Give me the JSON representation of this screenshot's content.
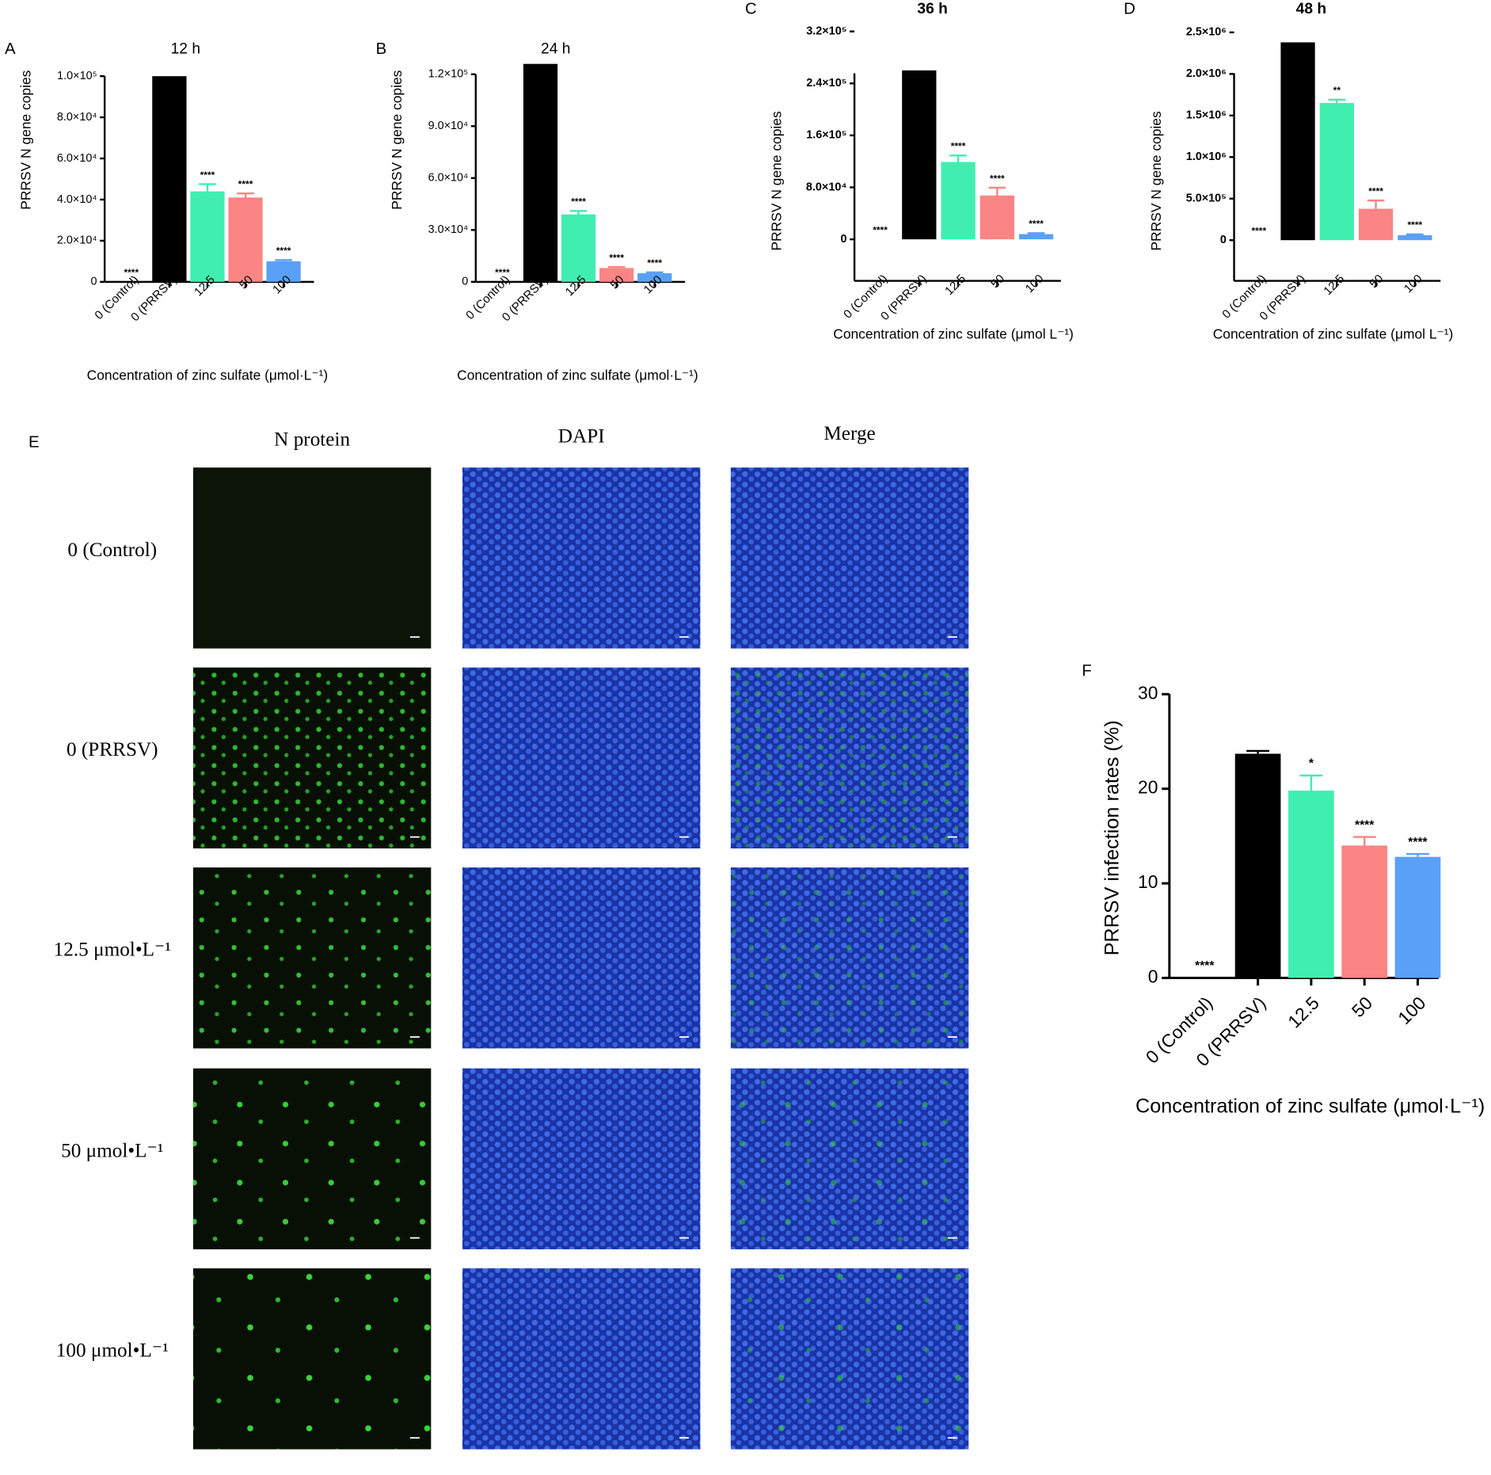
{
  "chart_data": [
    {
      "type": "bar",
      "panel": "A",
      "title": "12 h",
      "ylabel": "PRRSV N gene copies",
      "xlabel": "Concentration of zinc sulfate (μmol·L⁻¹)",
      "categories": [
        "0 (Control)",
        "0 (PRRSV)",
        "12.5",
        "50",
        "100"
      ],
      "values": [
        0,
        100000,
        44000,
        41000,
        10000
      ],
      "errors": [
        0,
        0,
        3500,
        2000,
        600
      ],
      "annotations": [
        "****",
        null,
        "****",
        "****",
        "****"
      ],
      "colors": [
        "#000000",
        "#000000",
        "#40eeb0",
        "#fb8484",
        "#5aa0f7"
      ],
      "ylim": [
        0,
        100000
      ],
      "yticks": [
        0,
        {
          "value": 20000,
          "label": "2.0×10⁴"
        },
        {
          "value": 40000,
          "label": "4.0×10⁴"
        },
        {
          "value": 60000,
          "label": "6.0×10⁴"
        },
        {
          "value": 80000,
          "label": "8.0×10⁴"
        },
        {
          "value": 100000,
          "label": "1.0×10⁵"
        }
      ]
    },
    {
      "type": "bar",
      "panel": "B",
      "title": "24 h",
      "ylabel": "PRRSV N gene copies",
      "xlabel": "Concentration of zinc sulfate (μmol·L⁻¹)",
      "categories": [
        "0 (Control)",
        "0 (PRRSV)",
        "12.5",
        "50",
        "100"
      ],
      "values": [
        0,
        126000,
        39000,
        8000,
        5000
      ],
      "errors": [
        0,
        0,
        2000,
        600,
        500
      ],
      "annotations": [
        "****",
        null,
        "****",
        "****",
        "****"
      ],
      "colors": [
        "#000000",
        "#000000",
        "#40eeb0",
        "#fb8484",
        "#5aa0f7"
      ],
      "ylim": [
        0,
        120000
      ],
      "yticks": [
        0,
        {
          "value": 30000,
          "label": "3.0×10⁴"
        },
        {
          "value": 60000,
          "label": "6.0×10⁴"
        },
        {
          "value": 90000,
          "label": "9.0×10⁴"
        },
        {
          "value": 120000,
          "label": "1.2×10⁵"
        }
      ]
    },
    {
      "type": "bar",
      "panel": "C",
      "title": "36 h",
      "ylabel": "PRRSV N gene copies",
      "xlabel": "Concentration of zinc sulfate (μmol L⁻¹)",
      "categories": [
        "0 (Control)",
        "0 (PRRSV)",
        "12.5",
        "50",
        "100"
      ],
      "values": [
        0,
        260000,
        119000,
        67500,
        8000
      ],
      "errors": [
        0,
        0,
        10000,
        12000,
        1500
      ],
      "annotations": [
        "****",
        null,
        "****",
        "****",
        "****"
      ],
      "colors": [
        "#000000",
        "#000000",
        "#40eeb0",
        "#fb8484",
        "#5aa0f7"
      ],
      "ylim": [
        -64000,
        320000
      ],
      "yticks": [
        0,
        {
          "value": 80000,
          "label": "8.0×10⁴"
        },
        {
          "value": 160000,
          "label": "1.6×10⁵"
        },
        {
          "value": 240000,
          "label": "2.4×10⁵"
        },
        {
          "value": 320000,
          "label": "3.2×10⁵"
        }
      ]
    },
    {
      "type": "bar",
      "panel": "D",
      "title": "48 h",
      "ylabel": "PRRSV N gene copies",
      "xlabel": "Concentration of zinc sulfate (μmol L⁻¹)",
      "categories": [
        "0 (Control)",
        "0 (PRRSV)",
        "12.5",
        "50",
        "100"
      ],
      "values": [
        0,
        2380000,
        1650000,
        378000,
        60000
      ],
      "errors": [
        0,
        0,
        40000,
        100000,
        10000
      ],
      "annotations": [
        "****",
        null,
        "**",
        "****",
        "****"
      ],
      "colors": [
        "#000000",
        "#000000",
        "#40eeb0",
        "#fb8484",
        "#5aa0f7"
      ],
      "ylim": [
        -490000,
        2500000
      ],
      "yticks": [
        0,
        {
          "value": 500000,
          "label": "5.0×10⁵"
        },
        {
          "value": 1000000,
          "label": "1.0×10⁶"
        },
        {
          "value": 1500000,
          "label": "1.5×10⁶"
        },
        {
          "value": 2000000,
          "label": "2.0×10⁶"
        },
        {
          "value": 2500000,
          "label": "2.5×10⁶"
        }
      ]
    },
    {
      "type": "bar",
      "panel": "F",
      "ylabel": "PRRSV infection rates (%)",
      "xlabel": "Concentration of zinc sulfate (μmol·L⁻¹)",
      "categories": [
        "0 (Control)",
        "0 (PRRSV)",
        "12.5",
        "50",
        "100"
      ],
      "values": [
        0,
        23.7,
        19.8,
        14.0,
        12.8
      ],
      "errors": [
        0,
        0.3,
        1.6,
        0.9,
        0.3
      ],
      "annotations": [
        "****",
        null,
        "*",
        "****",
        "****"
      ],
      "colors": [
        "#000000",
        "#000000",
        "#40eeb0",
        "#fb8484",
        "#5aa0f7"
      ],
      "ylim": [
        0,
        30
      ],
      "yticks": [
        0,
        10,
        20,
        30
      ]
    }
  ],
  "panel_e": {
    "panel": "E",
    "columns": [
      "N protein",
      "DAPI",
      "Merge"
    ],
    "rows": [
      "0 (Control)",
      "0 (PRRSV)",
      "12.5 μmol•L⁻¹",
      "50 μmol•L⁻¹",
      "100 μmol•L⁻¹"
    ]
  }
}
